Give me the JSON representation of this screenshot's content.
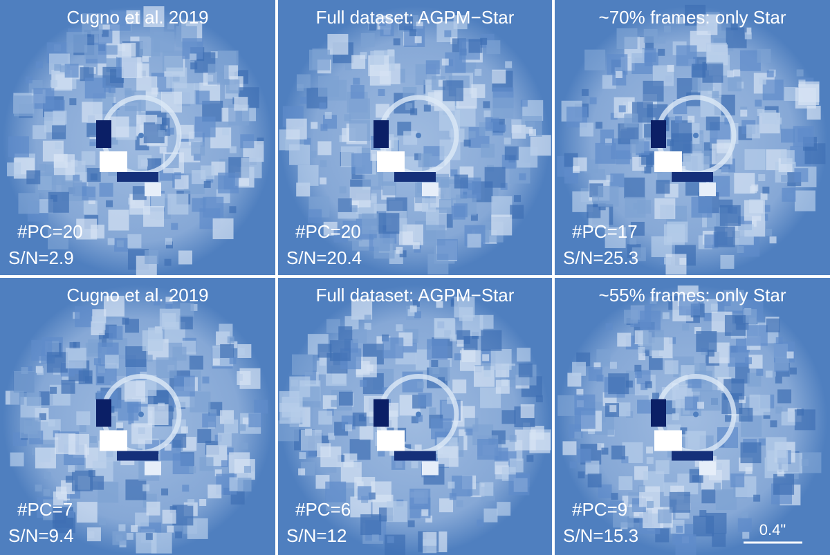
{
  "panels": [
    {
      "title": "Cugno et al. 2019",
      "pc": "#PC=20",
      "sn": "S/N=2.9"
    },
    {
      "title": "Full dataset: AGPM−Star",
      "pc": "#PC=20",
      "sn": "S/N=20.4"
    },
    {
      "title": "~70% frames: only Star",
      "pc": "#PC=17",
      "sn": "S/N=25.3"
    },
    {
      "title": "Cugno et al. 2019",
      "pc": "#PC=7",
      "sn": "S/N=9.4"
    },
    {
      "title": "Full dataset: AGPM−Star",
      "pc": "#PC=6",
      "sn": "S/N=12"
    },
    {
      "title": "~55% frames: only Star",
      "pc": "#PC=9",
      "sn": "S/N=15.3"
    }
  ],
  "scale_bar": {
    "label": "0.4\""
  }
}
